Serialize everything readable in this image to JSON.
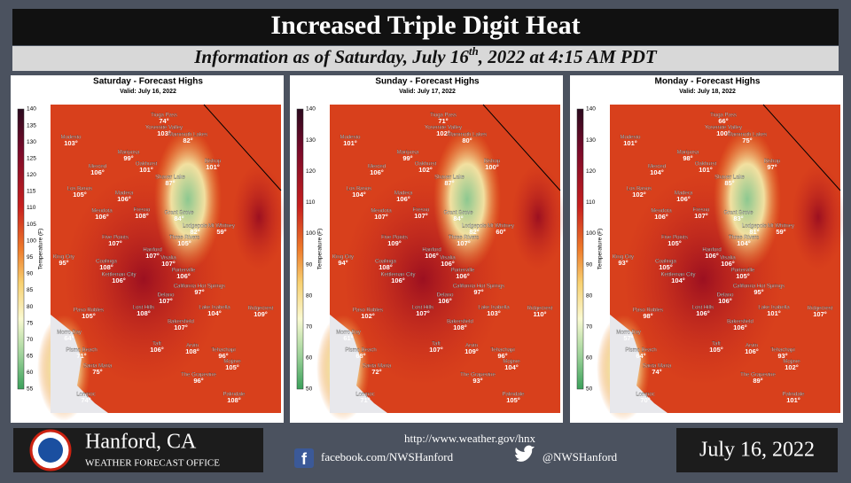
{
  "header": {
    "title": "Increased Triple Digit Heat",
    "subtitle": [
      "Information as of Saturday, July 16",
      "th",
      ", 2022 at 4:15 AM PDT"
    ]
  },
  "panels": [
    {
      "title": "Saturday - Forecast Highs",
      "valid": "Valid: July 16, 2022",
      "legend_label": "Temperature (F)",
      "legend_ticks": [
        140,
        135,
        130,
        125,
        120,
        115,
        110,
        105,
        100,
        95,
        90,
        85,
        80,
        75,
        70,
        65,
        60,
        55
      ],
      "places": [
        [
          "Tioga Pass",
          "74°"
        ],
        [
          "Modesto",
          "103°"
        ],
        [
          "Yosemite Valley",
          "103°"
        ],
        [
          "Mammoth Lakes",
          "82°"
        ],
        [
          "Mariposa",
          "99°"
        ],
        [
          "Oakhurst",
          "101°"
        ],
        [
          "Bishop",
          "101°"
        ],
        [
          "Merced",
          "106°"
        ],
        [
          "Shaver Lake",
          "87°"
        ],
        [
          "Los Banos",
          "105°"
        ],
        [
          "Madera",
          "106°"
        ],
        [
          "Mendota",
          "106°"
        ],
        [
          "Fresno",
          "108°"
        ],
        [
          "Grant Grove",
          "84°"
        ],
        [
          "Lodgepole",
          "82°"
        ],
        [
          "Mt Whitney",
          "59°"
        ],
        [
          "Three Rivers",
          "105°"
        ],
        [
          "Five Points",
          "107°"
        ],
        [
          "Hanford",
          "107°"
        ],
        [
          "Visalia",
          "107°"
        ],
        [
          "King City",
          "95°"
        ],
        [
          "Coalinga",
          "108°"
        ],
        [
          "Kettleman City",
          "106°"
        ],
        [
          "Porterville",
          "106°"
        ],
        [
          "California Hot Springs",
          "97°"
        ],
        [
          "Delano",
          "107°"
        ],
        [
          "Lost Hills",
          "108°"
        ],
        [
          "Lake Isabella",
          "104°"
        ],
        [
          "Ridgecrest",
          "109°"
        ],
        [
          "Paso Robles",
          "105°"
        ],
        [
          "Bakersfield",
          "107°"
        ],
        [
          "Morro Bay",
          "64°"
        ],
        [
          "Taft",
          "106°"
        ],
        [
          "Arvin",
          "108°"
        ],
        [
          "Pismo Beach",
          "71°"
        ],
        [
          "Tehachapi",
          "96°"
        ],
        [
          "Mojave",
          "105°"
        ],
        [
          "Santa Maria",
          "75°"
        ],
        [
          "The Grapevine",
          "96°"
        ],
        [
          "Lompoc",
          "74°"
        ],
        [
          "Palmdale",
          "108°"
        ]
      ]
    },
    {
      "title": "Sunday - Forecast Highs",
      "valid": "Valid: July 17, 2022",
      "legend_label": "Temperature (F)",
      "legend_ticks": [
        140,
        130,
        120,
        110,
        100,
        90,
        80,
        70,
        60,
        50
      ],
      "places": [
        [
          "Tioga Pass",
          "71°"
        ],
        [
          "Modesto",
          "101°"
        ],
        [
          "Yosemite Valley",
          "102°"
        ],
        [
          "Mammoth Lakes",
          "80°"
        ],
        [
          "Mariposa",
          "99°"
        ],
        [
          "Oakhurst",
          "102°"
        ],
        [
          "Bishop",
          "100°"
        ],
        [
          "Merced",
          "106°"
        ],
        [
          "Shaver Lake",
          "87°"
        ],
        [
          "Los Banos",
          "104°"
        ],
        [
          "Madera",
          "106°"
        ],
        [
          "Mendota",
          "107°"
        ],
        [
          "Fresno",
          "107°"
        ],
        [
          "Grant Grove",
          "84°"
        ],
        [
          "Lodgepole",
          "82°"
        ],
        [
          "Mt Whitney",
          "60°"
        ],
        [
          "Three Rivers",
          "107°"
        ],
        [
          "Five Points",
          "109°"
        ],
        [
          "Hanford",
          "106°"
        ],
        [
          "Visalia",
          "106°"
        ],
        [
          "King City",
          "94°"
        ],
        [
          "Coalinga",
          "108°"
        ],
        [
          "Kettleman City",
          "106°"
        ],
        [
          "Porterville",
          "106°"
        ],
        [
          "California Hot Springs",
          "97°"
        ],
        [
          "Delano",
          "106°"
        ],
        [
          "Lost Hills",
          "107°"
        ],
        [
          "Lake Isabella",
          "103°"
        ],
        [
          "Ridgecrest",
          "110°"
        ],
        [
          "Paso Robles",
          "102°"
        ],
        [
          "Bakersfield",
          "108°"
        ],
        [
          "Morro Bay",
          "61°"
        ],
        [
          "Taft",
          "107°"
        ],
        [
          "Arvin",
          "109°"
        ],
        [
          "Pismo Beach",
          "68°"
        ],
        [
          "Tehachapi",
          "96°"
        ],
        [
          "Mojave",
          "104°"
        ],
        [
          "Santa Maria",
          "72°"
        ],
        [
          "The Grapevine",
          "93°"
        ],
        [
          "Lompoc",
          "71°"
        ],
        [
          "Palmdale",
          "105°"
        ]
      ]
    },
    {
      "title": "Monday - Forecast Highs",
      "valid": "Valid: July 18, 2022",
      "legend_label": "Temperature (F)",
      "legend_ticks": [
        140,
        130,
        120,
        110,
        100,
        90,
        80,
        70,
        60,
        50
      ],
      "places": [
        [
          "Tioga Pass",
          "66°"
        ],
        [
          "Modesto",
          "101°"
        ],
        [
          "Yosemite Valley",
          "100°"
        ],
        [
          "Mammoth Lakes",
          "75°"
        ],
        [
          "Mariposa",
          "98°"
        ],
        [
          "Oakhurst",
          "101°"
        ],
        [
          "Bishop",
          "97°"
        ],
        [
          "Merced",
          "104°"
        ],
        [
          "Shaver Lake",
          "85°"
        ],
        [
          "Los Banos",
          "102°"
        ],
        [
          "Madera",
          "106°"
        ],
        [
          "Mendota",
          "106°"
        ],
        [
          "Fresno",
          "107°"
        ],
        [
          "Grant Grove",
          "83°"
        ],
        [
          "Lodgepole",
          "81°"
        ],
        [
          "Mt Whitney",
          "59°"
        ],
        [
          "Three Rivers",
          "104°"
        ],
        [
          "Five Points",
          "105°"
        ],
        [
          "Hanford",
          "106°"
        ],
        [
          "Visalia",
          "106°"
        ],
        [
          "King City",
          "93°"
        ],
        [
          "Coalinga",
          "105°"
        ],
        [
          "Kettleman City",
          "104°"
        ],
        [
          "Porterville",
          "105°"
        ],
        [
          "California Hot Springs",
          "95°"
        ],
        [
          "Delano",
          "106°"
        ],
        [
          "Lost Hills",
          "106°"
        ],
        [
          "Lake Isabella",
          "101°"
        ],
        [
          "Ridgecrest",
          "107°"
        ],
        [
          "Paso Robles",
          "98°"
        ],
        [
          "Bakersfield",
          "106°"
        ],
        [
          "Morro Bay",
          "57°"
        ],
        [
          "Taft",
          "105°"
        ],
        [
          "Arvin",
          "106°"
        ],
        [
          "Pismo Beach",
          "64°"
        ],
        [
          "Tehachapi",
          "93°"
        ],
        [
          "Mojave",
          "102°"
        ],
        [
          "Santa Maria",
          "74°"
        ],
        [
          "The Grapevine",
          "89°"
        ],
        [
          "Lompoc",
          "70°"
        ],
        [
          "Palmdale",
          "101°"
        ]
      ]
    }
  ],
  "footer": {
    "office": "Hanford, CA",
    "office_sub": "WEATHER FORECAST OFFICE",
    "url": "http://www.weather.gov/hnx",
    "facebook": "facebook.com/NWSHanford",
    "twitter": "@NWSHanford",
    "date": "July 16, 2022"
  }
}
